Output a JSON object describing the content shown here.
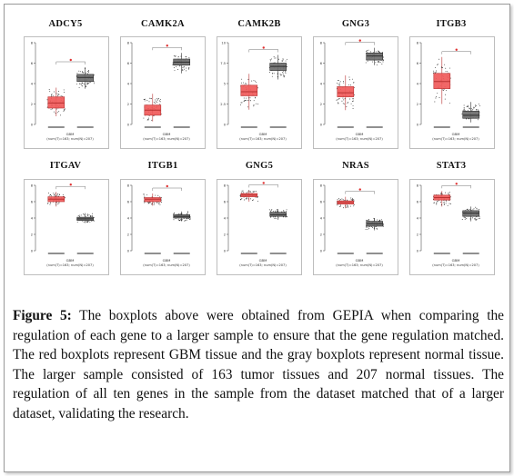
{
  "figure": {
    "label": "Figure 5:",
    "caption": " The boxplots above were obtained from GEPIA when comparing the regulation of each gene to a larger sample to ensure that the gene regulation matched. The red boxplots represent GBM tissue and the gray boxplots represent normal tissue. The larger sample consisted of 163 tumor tissues and 207 normal tissues. The regulation of all ten genes in the sample from the dataset matched that of a larger dataset, validating the research."
  },
  "colors": {
    "tumor": "#f05a5a",
    "normal": "#6e6e6e",
    "tumor_edge": "#b83232",
    "normal_edge": "#2c2c2c"
  },
  "chart_data": [
    {
      "type": "boxplot",
      "title": "ADCY5",
      "xlabel": "GBM",
      "sublabel": "(num(T)=163; num(N)=207)",
      "ylim": [
        0,
        8
      ],
      "tumor": [
        0.8,
        1.6,
        2.1,
        2.7,
        3.6
      ],
      "normal": [
        3.5,
        4.2,
        4.6,
        4.9,
        5.6
      ]
    },
    {
      "type": "boxplot",
      "title": "CAMK2A",
      "xlabel": "GBM",
      "sublabel": "(num(T)=163; num(N)=207)",
      "ylim": [
        0,
        8
      ],
      "tumor": [
        0.3,
        0.9,
        1.4,
        1.9,
        3.0
      ],
      "normal": [
        5.0,
        5.8,
        6.1,
        6.4,
        7.0
      ]
    },
    {
      "type": "boxplot",
      "title": "CAMK2B",
      "xlabel": "GBM",
      "sublabel": "(num(T)=163; num(N)=207)",
      "ylim": [
        0,
        10
      ],
      "tumor": [
        1.8,
        3.5,
        4.0,
        4.8,
        6.2
      ],
      "normal": [
        5.5,
        6.6,
        7.1,
        7.5,
        8.5
      ]
    },
    {
      "type": "boxplot",
      "title": "GNG3",
      "xlabel": "GBM",
      "sublabel": "(num(T)=163; num(N)=207)",
      "ylim": [
        0,
        8
      ],
      "tumor": [
        1.4,
        2.7,
        3.1,
        3.7,
        4.8
      ],
      "normal": [
        5.8,
        6.3,
        6.7,
        7.0,
        7.5
      ]
    },
    {
      "type": "boxplot",
      "title": "ITGB3",
      "xlabel": "GBM",
      "sublabel": "(num(T)=163; num(N)=207)",
      "ylim": [
        0,
        8
      ],
      "tumor": [
        2.0,
        3.5,
        4.2,
        5.0,
        6.6
      ],
      "normal": [
        0.2,
        0.6,
        0.9,
        1.3,
        2.2
      ]
    },
    {
      "type": "boxplot",
      "title": "ITGAV",
      "xlabel": "GBM",
      "sublabel": "(num(T)=163; num(N)=207)",
      "ylim": [
        0,
        8
      ],
      "tumor": [
        5.4,
        6.0,
        6.3,
        6.6,
        7.2
      ],
      "normal": [
        3.4,
        3.7,
        3.9,
        4.1,
        4.6
      ]
    },
    {
      "type": "boxplot",
      "title": "ITGB1",
      "xlabel": "GBM",
      "sublabel": "(num(T)=163; num(N)=207)",
      "ylim": [
        0,
        8
      ],
      "tumor": [
        5.5,
        6.0,
        6.3,
        6.5,
        7.0
      ],
      "normal": [
        3.6,
        4.0,
        4.2,
        4.4,
        4.8
      ]
    },
    {
      "type": "boxplot",
      "title": "GNG5",
      "xlabel": "GBM",
      "sublabel": "(num(T)=163; num(N)=207)",
      "ylim": [
        0,
        8
      ],
      "tumor": [
        6.0,
        6.6,
        6.8,
        7.0,
        7.4
      ],
      "normal": [
        3.8,
        4.2,
        4.4,
        4.7,
        5.1
      ]
    },
    {
      "type": "boxplot",
      "title": "NRAS",
      "xlabel": "GBM",
      "sublabel": "(num(T)=163; num(N)=207)",
      "ylim": [
        0,
        8
      ],
      "tumor": [
        5.2,
        5.7,
        5.9,
        6.1,
        6.6
      ],
      "normal": [
        2.5,
        3.0,
        3.3,
        3.6,
        4.0
      ]
    },
    {
      "type": "boxplot",
      "title": "STAT3",
      "xlabel": "GBM",
      "sublabel": "(num(T)=163; num(N)=207)",
      "ylim": [
        0,
        8
      ],
      "tumor": [
        5.4,
        6.2,
        6.5,
        6.8,
        7.3
      ],
      "normal": [
        3.6,
        4.2,
        4.6,
        4.9,
        5.4
      ]
    }
  ]
}
